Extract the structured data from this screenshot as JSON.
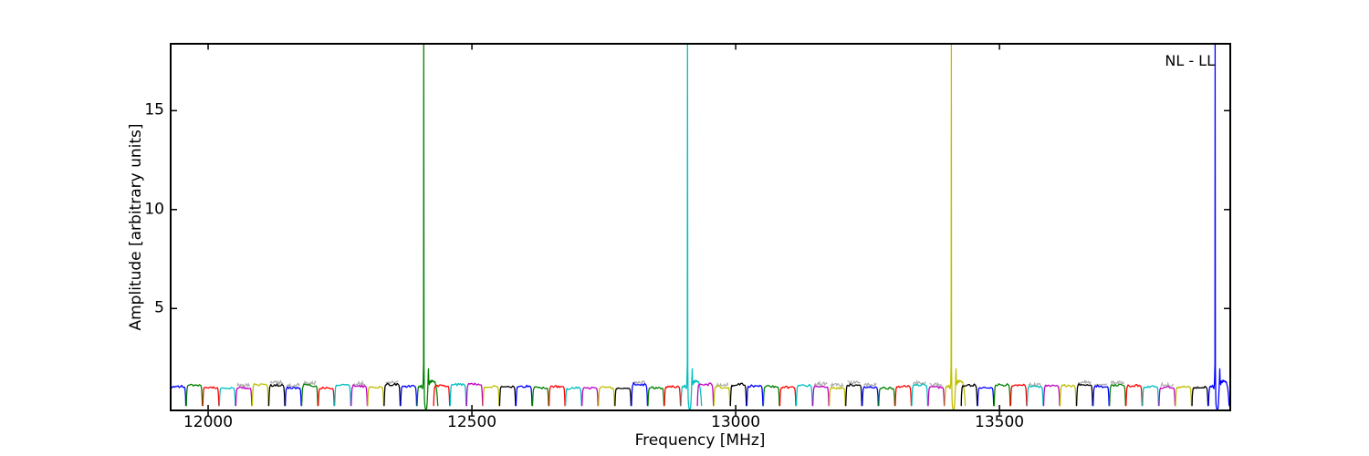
{
  "figure": {
    "background": "#ffffff"
  },
  "xaxis": {
    "label": "Frequency [MHz]",
    "ticks": [
      12000,
      12500,
      13000,
      13500
    ],
    "tick_labels": [
      "12000",
      "12500",
      "13000",
      "13500"
    ]
  },
  "yaxis": {
    "label": "Amplitude [arbitrary units]",
    "ticks": [
      5,
      10,
      15
    ],
    "tick_labels": [
      "5",
      "10",
      "15"
    ]
  },
  "legend": {
    "label": "NL - LL"
  },
  "colors": {
    "spine": "#000000",
    "tick": "#000000",
    "noise_overlay": "#aaaaaa",
    "cycle": [
      "#0000ff",
      "#008000",
      "#ff0000",
      "#00bfbf",
      "#bf00bf",
      "#bfbf00",
      "#000000"
    ]
  },
  "chart_data": {
    "type": "line",
    "title": "",
    "xlabel": "Frequency [MHz]",
    "ylabel": "Amplitude [arbitrary units]",
    "legend_entries": [
      "NL - LL"
    ],
    "legend_position": "upper right",
    "grid": false,
    "xlim": [
      11929,
      13937.5
    ],
    "ylim": [
      -0.15,
      18.38
    ],
    "xticks": [
      12000,
      12500,
      13000,
      13500
    ],
    "yticks": [
      5,
      10,
      15
    ],
    "description": "Cross-correlation bandpass spectrum: contiguous 31.25 MHz subband bumps of amplitude ~1.1 spanning 11929-13937 MHz, matplotlib color cycle b,g,r,c,m,y,k; four narrow spikes reach the top of the axes (clipped), each followed by a dip to zero and a deformed recovery hump in the same subband.",
    "subbands": {
      "start_mhz": 11927,
      "width_mhz": 31.25,
      "count": 64,
      "baseline_amplitude": 1.1,
      "color_cycle_order": [
        "blue",
        "green",
        "red",
        "cyan",
        "magenta",
        "yellow",
        "black"
      ]
    },
    "spikes": [
      {
        "freq_mhz": 12409,
        "color": "#008000",
        "subband_index": 15,
        "peak": "clipped at axes top (>18.38)"
      },
      {
        "freq_mhz": 12909,
        "color": "#00bfbf",
        "subband_index": 31,
        "peak": "clipped at axes top (>18.38)"
      },
      {
        "freq_mhz": 13409,
        "color": "#bfbf00",
        "subband_index": 47,
        "peak": "clipped at axes top (>18.38)"
      },
      {
        "freq_mhz": 13909,
        "color": "#0000ff",
        "subband_index": 63,
        "peak": "clipped at axes top (>18.38)"
      }
    ]
  }
}
